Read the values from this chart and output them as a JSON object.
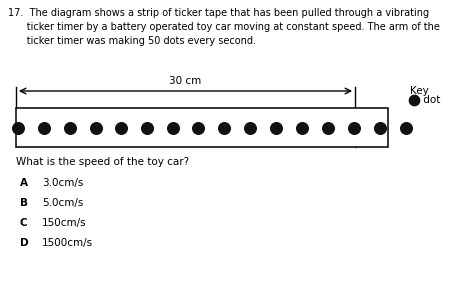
{
  "title_text": "17.  The diagram shows a strip of ticker tape that has been pulled through a vibrating\n      ticker timer by a battery operated toy car moving at constant speed. The arm of the\n      ticker timer was making 50 dots every second.",
  "arrow_label": "30 cm",
  "key_label": "Key",
  "key_dot_label": " dot",
  "question": "What is the speed of the toy car?",
  "options": [
    {
      "letter": "A",
      "text": "3.0cm/s"
    },
    {
      "letter": "B",
      "text": "5.0cm/s"
    },
    {
      "letter": "C",
      "text": "150cm/s"
    },
    {
      "letter": "D",
      "text": "1500cm/s"
    }
  ],
  "dot_color": "#111111",
  "font_color": "#000000",
  "bg_color": "#ffffff",
  "tape_fill": "#ffffff",
  "tape_edge": "#111111",
  "title_fontsize": 7.0,
  "label_fontsize": 7.5,
  "option_fontsize": 7.5
}
